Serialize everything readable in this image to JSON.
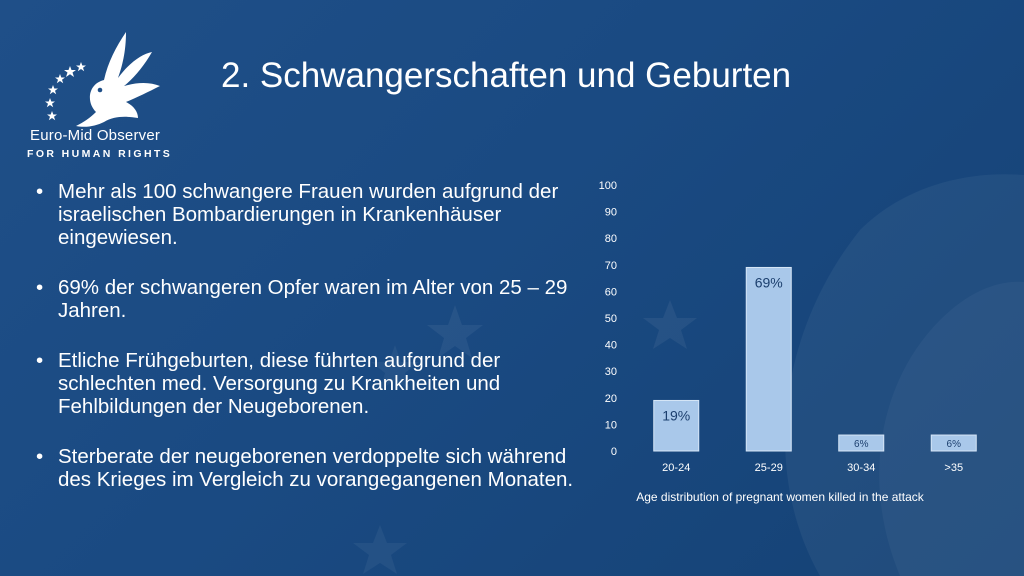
{
  "logo": {
    "icon": "dove-hand-stars-icon",
    "name": "Euro-Mid Observer",
    "tagline": "FOR HUMAN RIGHTS"
  },
  "title": "2. Schwangerschaften und Geburten",
  "bullets": [
    "Mehr als 100 schwangere Frauen wurden aufgrund der israelischen Bombardierungen in Krankenhäuser eingewiesen.",
    "69% der schwangeren Opfer waren im Alter von 25 – 29 Jahren.",
    "Etliche Frühgeburten, diese führten aufgrund der schlechten med. Versorgung zu Krankheiten und Fehlbildungen der Neugeborenen.",
    "Sterberate der neugeborenen verdoppelte sich während des Krieges im Vergleich zu vorangegangenen Monaten."
  ],
  "chart_data": {
    "type": "bar",
    "categories": [
      "20-24",
      "25-29",
      "30-34",
      ">35"
    ],
    "values": [
      19,
      69,
      6,
      6
    ],
    "data_labels": [
      "19%",
      "69%",
      "6%",
      "6%"
    ],
    "title": "",
    "xlabel": "Age distribution of pregnant women killed in the attack",
    "ylabel": "",
    "ylim": [
      0,
      100
    ],
    "yticks": [
      0,
      10,
      20,
      30,
      40,
      50,
      60,
      70,
      80,
      90,
      100
    ],
    "grid": false,
    "legend": "none"
  },
  "colors": {
    "background": "#1a4a82",
    "bar_fill": "#a9c8ea",
    "bar_stroke": "#d6e6f7",
    "data_label": "#1c3f6e",
    "axis_text": "#ffffff"
  }
}
